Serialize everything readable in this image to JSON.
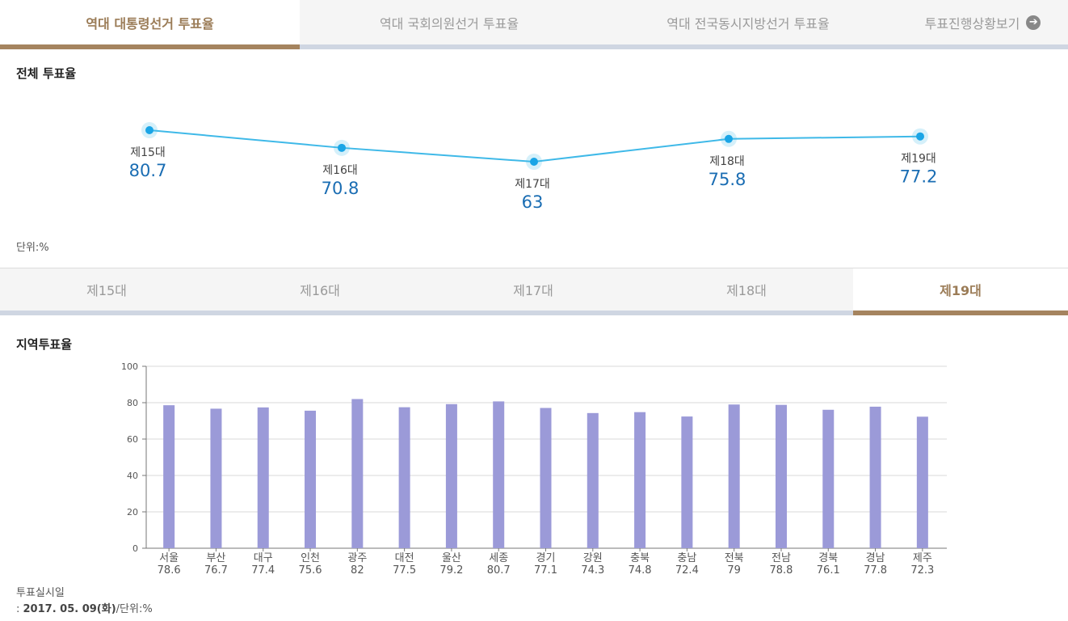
{
  "tabs": [
    {
      "label": "역대 대통령선거 투표율"
    },
    {
      "label": "역대 국회의원선거 투표율"
    },
    {
      "label": "역대 전국동시지방선거 투표율"
    },
    {
      "label": "투표진행상황보기"
    }
  ],
  "overall": {
    "title": "전체 투표율",
    "unit": "단위:%"
  },
  "election_tabs": [
    "제15대",
    "제16대",
    "제17대",
    "제18대",
    "제19대"
  ],
  "regional": {
    "title": "지역투표율",
    "footnote_label": "투표실시일",
    "footnote_prefix": ": ",
    "footnote_date": "2017. 05. 09(화)",
    "footnote_unit": "/단위:%"
  },
  "colors": {
    "accent": "#a5845f",
    "line": "#3fb9e8",
    "point": "#1aa5e6",
    "value_text": "#1a6db3",
    "bar": "#9b9ad8"
  },
  "chart_data": [
    {
      "type": "line",
      "title": "전체 투표율",
      "categories": [
        "제15대",
        "제16대",
        "제17대",
        "제18대",
        "제19대"
      ],
      "values": [
        80.7,
        70.8,
        63,
        75.8,
        77.2
      ],
      "ylabel": "단위:%"
    },
    {
      "type": "bar",
      "title": "지역투표율",
      "categories": [
        "서울",
        "부산",
        "대구",
        "인천",
        "광주",
        "대전",
        "울산",
        "세종",
        "경기",
        "강원",
        "충북",
        "충남",
        "전북",
        "전남",
        "경북",
        "경남",
        "제주"
      ],
      "values": [
        78.6,
        76.7,
        77.4,
        75.6,
        82,
        77.5,
        79.2,
        80.7,
        77.1,
        74.3,
        74.8,
        72.4,
        79,
        78.8,
        76.1,
        77.8,
        72.3
      ],
      "ylim": [
        0,
        100
      ],
      "yticks": [
        0,
        20,
        40,
        60,
        80,
        100
      ],
      "grid": true
    }
  ]
}
